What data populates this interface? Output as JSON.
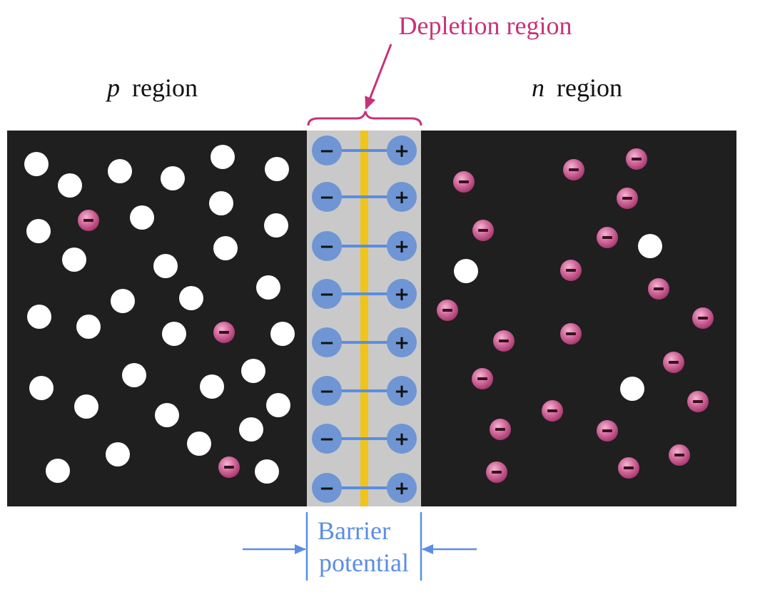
{
  "labels": {
    "p_region_letter": "p",
    "p_region_word": "region",
    "n_region_letter": "n",
    "n_region_word": "region",
    "depletion": "Depletion region",
    "barrier_line1": "Barrier",
    "barrier_line2": "potential"
  },
  "ion_signs": {
    "negative": "−",
    "positive": "+"
  },
  "colors": {
    "background": "#ffffff",
    "crystal": "#1f1f1f",
    "depletion_fill": "#c9c9c9",
    "junction_line": "#f0c419",
    "ion_fill": "#6f95d4",
    "field_arrow": "#5a8ee0",
    "hole": "#ffffff",
    "electron_fill": "#c85a8c",
    "depletion_label": "#c8327a",
    "barrier_label": "#5b8ee3"
  }
}
